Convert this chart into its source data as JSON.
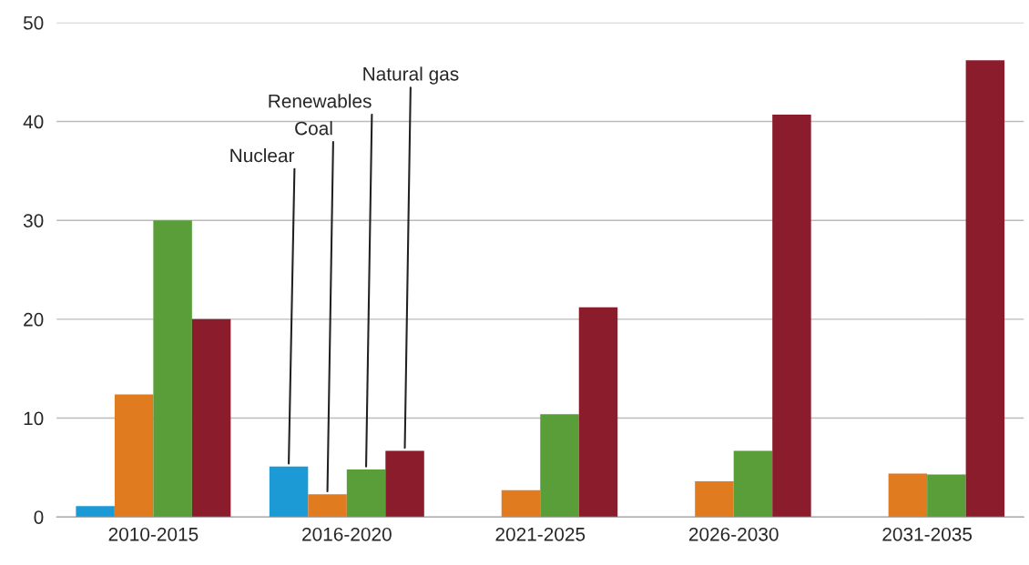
{
  "chart_data": {
    "type": "bar",
    "categories": [
      "2010-2015",
      "2016-2020",
      "2021-2025",
      "2026-2030",
      "2031-2035"
    ],
    "series": [
      {
        "name": "Nuclear",
        "color": "#1b9ad6",
        "values": [
          1.1,
          5.1,
          null,
          null,
          null
        ]
      },
      {
        "name": "Coal",
        "color": "#e07b1f",
        "values": [
          12.4,
          2.3,
          2.7,
          3.6,
          4.4
        ]
      },
      {
        "name": "Renewables",
        "color": "#5a9e3a",
        "values": [
          30,
          4.8,
          10.4,
          6.7,
          4.3
        ]
      },
      {
        "name": "Natural gas",
        "color": "#8b1c2c",
        "values": [
          20,
          6.7,
          21.2,
          40.7,
          46.2
        ]
      }
    ],
    "ylim": [
      0,
      50
    ],
    "yticks": [
      0,
      10,
      20,
      30,
      40,
      50
    ],
    "grid": "y",
    "legend": false
  }
}
